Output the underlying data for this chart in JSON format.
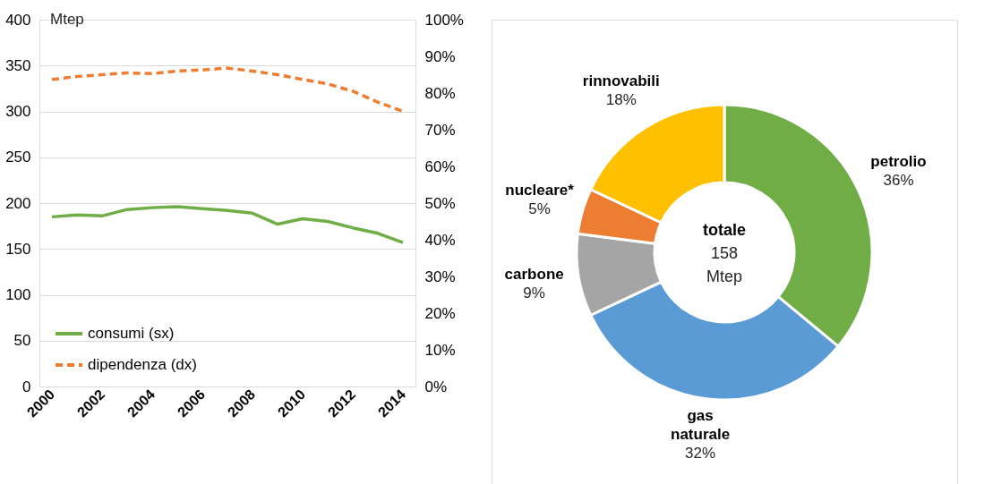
{
  "chart_data": [
    {
      "type": "line",
      "x": [
        2000,
        2001,
        2002,
        2003,
        2004,
        2005,
        2006,
        2007,
        2008,
        2009,
        2010,
        2011,
        2012,
        2013,
        2014
      ],
      "ylabel": "Mtep",
      "series": [
        {
          "name": "consumi (sx)",
          "color": "#70ad47",
          "values": [
            185,
            187,
            186,
            193,
            195,
            196,
            194,
            192,
            189,
            177,
            183,
            180,
            173,
            167,
            157
          ]
        },
        {
          "name": "dipendenza (dx)",
          "color": "#ed7d31",
          "axis": "y2",
          "line_style": "dashed",
          "values": [
            83.7,
            84.5,
            85,
            85.5,
            85.3,
            86,
            86.3,
            86.8,
            86,
            85,
            83.7,
            82.5,
            80.5,
            77.5,
            75
          ]
        }
      ],
      "xlim": [
        1999.5,
        2014.5
      ],
      "xticks": [
        2000,
        2002,
        2004,
        2006,
        2008,
        2010,
        2012,
        2014
      ],
      "ylim": [
        0,
        400
      ],
      "yticks": [
        0,
        50,
        100,
        150,
        200,
        250,
        300,
        350,
        400
      ],
      "y2lim": [
        0,
        100
      ],
      "y2ticks": [
        {
          "value": 0,
          "label": "0%"
        },
        {
          "value": 10,
          "label": "10%"
        },
        {
          "value": 20,
          "label": "20%"
        },
        {
          "value": 30,
          "label": "30%"
        },
        {
          "value": 40,
          "label": "40%"
        },
        {
          "value": 50,
          "label": "50%"
        },
        {
          "value": 60,
          "label": "60%"
        },
        {
          "value": 70,
          "label": "70%"
        },
        {
          "value": 80,
          "label": "80%"
        },
        {
          "value": 90,
          "label": "90%"
        },
        {
          "value": 100,
          "label": "100%"
        }
      ],
      "grid": "y",
      "legend": "bottom left",
      "marker": "none"
    },
    {
      "type": "donut",
      "categories": [
        "petrolio",
        "gas naturale",
        "carbone",
        "nucleare*",
        "rinnovabili"
      ],
      "values": [
        36,
        32,
        9,
        5,
        18
      ],
      "colors": [
        "#70ad47",
        "#5b9bd5",
        "#a5a5a5",
        "#ed7d31",
        "#ffc000"
      ],
      "value_labels": [
        "36%",
        "32%",
        "9%",
        "5%",
        "18%"
      ],
      "annotations": [
        "totale",
        "158",
        "Mtep"
      ]
    }
  ]
}
